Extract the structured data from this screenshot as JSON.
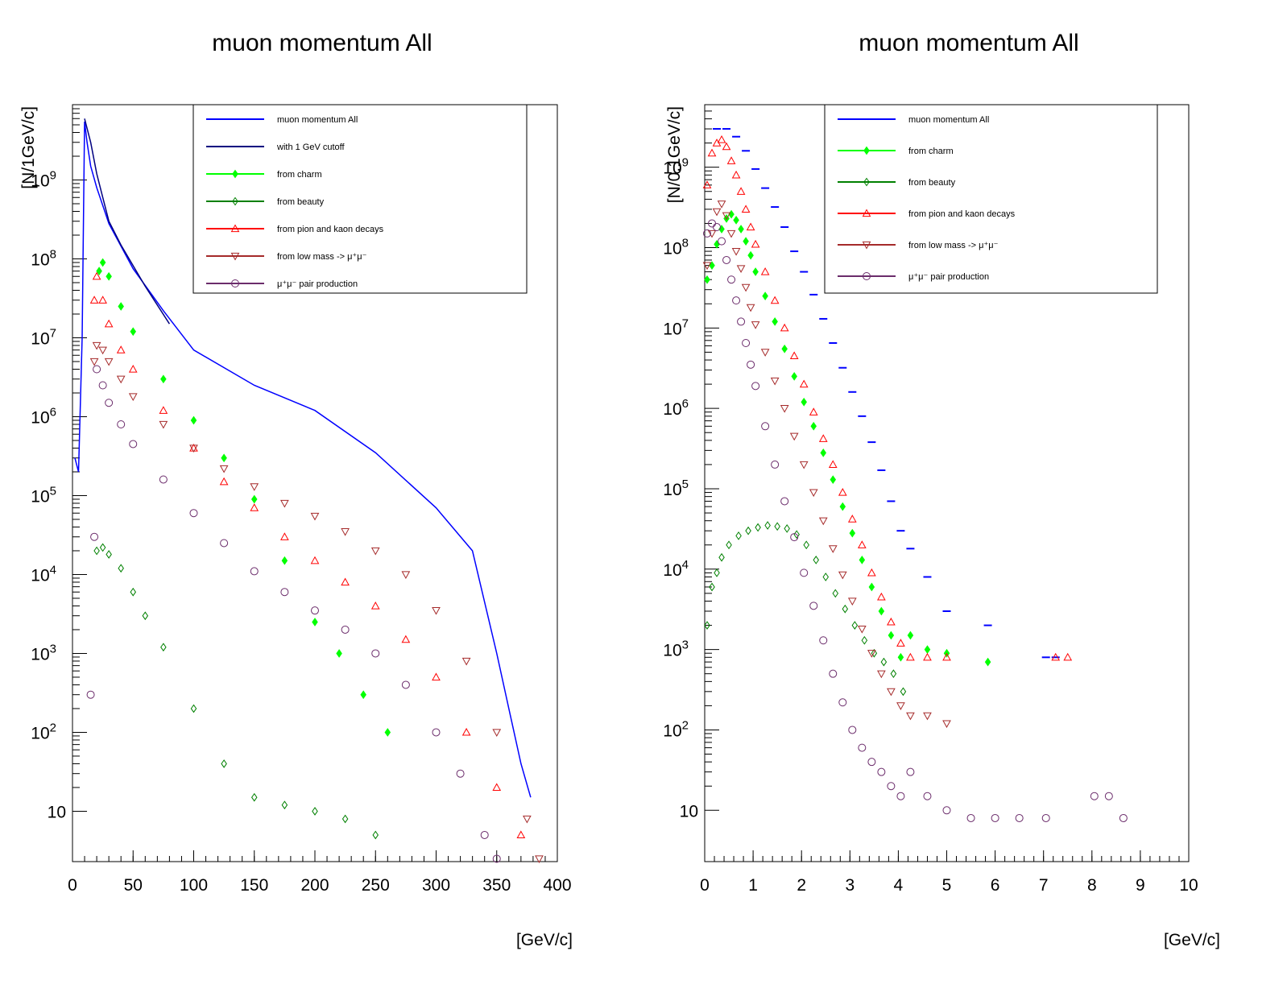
{
  "chart_data": [
    {
      "type": "scatter",
      "title": "muon momentum All",
      "xlabel": "[GeV/c]",
      "ylabel": "[N/1GeV/c]",
      "xlim": [
        0,
        400
      ],
      "ylim": [
        2.3,
        9000000000
      ],
      "yscale": "log",
      "x_ticks": [
        "0",
        "50",
        "100",
        "150",
        "200",
        "250",
        "300",
        "350",
        "400"
      ],
      "y_ticks": [
        {
          "value": 10,
          "label": "10"
        },
        {
          "value": 100,
          "label": "10",
          "exp": "2"
        },
        {
          "value": 1000,
          "label": "10",
          "exp": "3"
        },
        {
          "value": 10000,
          "label": "10",
          "exp": "4"
        },
        {
          "value": 100000,
          "label": "10",
          "exp": "5"
        },
        {
          "value": 1000000,
          "label": "10",
          "exp": "6"
        },
        {
          "value": 10000000,
          "label": "10",
          "exp": "7"
        },
        {
          "value": 100000000,
          "label": "10",
          "exp": "8"
        },
        {
          "value": 1000000000,
          "label": "10",
          "exp": "9"
        }
      ],
      "legend_position": "top-right",
      "series": [
        {
          "name": "muon momentum All",
          "color": "#0000ff",
          "marker": "line",
          "x": [
            2,
            5,
            8,
            10,
            12,
            15,
            20,
            30,
            50,
            75,
            100,
            150,
            200,
            250,
            300,
            330,
            350,
            360,
            370,
            378
          ],
          "y": [
            300000,
            200000,
            10000000,
            5500000000,
            3000000000,
            1500000000,
            800000000,
            280000000,
            75000000,
            22000000,
            7000000,
            2500000,
            1200000,
            350000,
            70000,
            20000,
            1000,
            200,
            40,
            15
          ]
        },
        {
          "name": "with 1 GeV cutoff",
          "color": "#000080",
          "marker": "line",
          "x": [
            10,
            15,
            20,
            25,
            30,
            40,
            60,
            80
          ],
          "y": [
            6000000000,
            3000000000,
            1200000000,
            600000000,
            300000000,
            150000000,
            45000000,
            15000000
          ]
        },
        {
          "name": "from charm",
          "color": "#00ff00",
          "marker": "diamond",
          "x": [
            22,
            25,
            30,
            40,
            50,
            75,
            100,
            125,
            150,
            175,
            200,
            220,
            240,
            260
          ],
          "y": [
            70000000,
            90000000,
            60000000,
            25000000,
            12000000,
            3000000,
            900000,
            300000,
            90000,
            15000,
            2500,
            1000,
            300,
            100
          ]
        },
        {
          "name": "from beauty",
          "color": "#008000",
          "marker": "diamond-open",
          "x": [
            20,
            25,
            30,
            40,
            50,
            60,
            75,
            100,
            125,
            150,
            175,
            200,
            225,
            250
          ],
          "y": [
            20000,
            22000,
            18000,
            12000,
            6000,
            3000,
            1200,
            200,
            40,
            15,
            12,
            10,
            8,
            5
          ]
        },
        {
          "name": "from pion and kaon decays",
          "color": "#ff0000",
          "marker": "triangle-up-open",
          "x": [
            18,
            20,
            25,
            30,
            40,
            50,
            75,
            100,
            125,
            150,
            175,
            200,
            225,
            250,
            275,
            300,
            325,
            350,
            370
          ],
          "y": [
            30000000,
            60000000,
            30000000,
            15000000,
            7000000,
            4000000,
            1200000,
            400000,
            150000,
            70000,
            30000,
            15000,
            8000,
            4000,
            1500,
            500,
            100,
            20,
            5
          ]
        },
        {
          "name": "from low mass -> μ⁺μ⁻",
          "color": "#a52a2a",
          "marker": "triangle-down-open",
          "x": [
            18,
            20,
            25,
            30,
            40,
            50,
            75,
            100,
            125,
            150,
            175,
            200,
            225,
            250,
            275,
            300,
            325,
            350,
            375,
            385
          ],
          "y": [
            5000000,
            8000000,
            7000000,
            5000000,
            3000000,
            1800000,
            800000,
            400000,
            220000,
            130000,
            80000,
            55000,
            35000,
            20000,
            10000,
            3500,
            800,
            100,
            8,
            2.5
          ]
        },
        {
          "name": "μ⁺μ⁻ pair production",
          "color": "#6b2c6b",
          "marker": "circle-open",
          "x": [
            15,
            18,
            20,
            25,
            30,
            40,
            50,
            75,
            100,
            125,
            150,
            175,
            200,
            225,
            250,
            275,
            300,
            320,
            340,
            350
          ],
          "y": [
            300,
            30000,
            4000000,
            2500000,
            1500000,
            800000,
            450000,
            160000,
            60000,
            25000,
            11000,
            6000,
            3500,
            2000,
            1000,
            400,
            100,
            30,
            5,
            2.5
          ]
        }
      ]
    },
    {
      "type": "scatter",
      "title": "muon momentum All",
      "xlabel": "[GeV/c]",
      "ylabel": "[N/0.1GeV/c]",
      "xlim": [
        0,
        10
      ],
      "ylim": [
        2.3,
        6000000000
      ],
      "yscale": "log",
      "x_ticks": [
        "0",
        "1",
        "2",
        "3",
        "4",
        "5",
        "6",
        "7",
        "8",
        "9",
        "10"
      ],
      "y_ticks": [
        {
          "value": 10,
          "label": "10"
        },
        {
          "value": 100,
          "label": "10",
          "exp": "2"
        },
        {
          "value": 1000,
          "label": "10",
          "exp": "3"
        },
        {
          "value": 10000,
          "label": "10",
          "exp": "4"
        },
        {
          "value": 100000,
          "label": "10",
          "exp": "5"
        },
        {
          "value": 1000000,
          "label": "10",
          "exp": "6"
        },
        {
          "value": 10000000,
          "label": "10",
          "exp": "7"
        },
        {
          "value": 100000000,
          "label": "10",
          "exp": "8"
        },
        {
          "value": 1000000000,
          "label": "10",
          "exp": "9"
        }
      ],
      "legend_position": "top-right",
      "series": [
        {
          "name": "muon momentum All",
          "color": "#0000ff",
          "marker": "dash",
          "x": [
            0.25,
            0.45,
            0.65,
            0.85,
            1.05,
            1.25,
            1.45,
            1.65,
            1.85,
            2.05,
            2.25,
            2.45,
            2.65,
            2.85,
            3.05,
            3.25,
            3.45,
            3.65,
            3.85,
            4.05,
            4.25,
            4.6,
            5.0,
            5.85,
            7.05,
            7.25
          ],
          "y": [
            3000000000,
            3000000000,
            2400000000,
            1600000000,
            950000000,
            550000000,
            320000000,
            180000000,
            90000000,
            50000000,
            26000000,
            13000000,
            6500000,
            3200000,
            1600000,
            800000,
            380000,
            170000,
            70000,
            30000,
            18000,
            8000,
            3000,
            2000,
            800,
            800
          ]
        },
        {
          "name": "from charm",
          "color": "#00ff00",
          "marker": "diamond",
          "x": [
            0.05,
            0.15,
            0.25,
            0.35,
            0.45,
            0.55,
            0.65,
            0.75,
            0.85,
            0.95,
            1.05,
            1.25,
            1.45,
            1.65,
            1.85,
            2.05,
            2.25,
            2.45,
            2.65,
            2.85,
            3.05,
            3.25,
            3.45,
            3.65,
            3.85,
            4.05,
            4.25,
            4.6,
            5.0,
            5.85
          ],
          "y": [
            40000000,
            60000000,
            110000000,
            170000000,
            230000000,
            260000000,
            220000000,
            170000000,
            120000000,
            80000000,
            50000000,
            25000000,
            12000000,
            5500000,
            2500000,
            1200000,
            600000,
            280000,
            130000,
            60000,
            28000,
            13000,
            6000,
            3000,
            1500,
            800,
            1500,
            1000,
            900,
            700
          ]
        },
        {
          "name": "from beauty",
          "color": "#008000",
          "marker": "diamond-open",
          "x": [
            0.05,
            0.15,
            0.25,
            0.35,
            0.5,
            0.7,
            0.9,
            1.1,
            1.3,
            1.5,
            1.7,
            1.9,
            2.1,
            2.3,
            2.5,
            2.7,
            2.9,
            3.1,
            3.3,
            3.5,
            3.7,
            3.9,
            4.1
          ],
          "y": [
            2000,
            6000,
            9000,
            14000,
            20000,
            26000,
            30000,
            33000,
            35000,
            34000,
            32000,
            27000,
            20000,
            13000,
            8000,
            5000,
            3200,
            2000,
            1300,
            900,
            700,
            500,
            300
          ]
        },
        {
          "name": "from pion and kaon decays",
          "color": "#ff0000",
          "marker": "triangle-up-open",
          "x": [
            0.05,
            0.15,
            0.25,
            0.35,
            0.45,
            0.55,
            0.65,
            0.75,
            0.85,
            0.95,
            1.05,
            1.25,
            1.45,
            1.65,
            1.85,
            2.05,
            2.25,
            2.45,
            2.65,
            2.85,
            3.05,
            3.25,
            3.45,
            3.65,
            3.85,
            4.05,
            4.25,
            4.6,
            5.0,
            7.25,
            7.5
          ],
          "y": [
            600000000,
            1500000000,
            2000000000,
            2200000000,
            1800000000,
            1200000000,
            800000000,
            500000000,
            300000000,
            180000000,
            110000000,
            50000000,
            22000000,
            10000000,
            4500000,
            2000000,
            900000,
            420000,
            200000,
            90000,
            42000,
            20000,
            9000,
            4500,
            2200,
            1200,
            800,
            800,
            800,
            800,
            800
          ]
        },
        {
          "name": "from low mass -> μ⁺μ⁻",
          "color": "#a52a2a",
          "marker": "triangle-down-open",
          "x": [
            0.05,
            0.15,
            0.25,
            0.35,
            0.45,
            0.55,
            0.65,
            0.75,
            0.85,
            0.95,
            1.05,
            1.25,
            1.45,
            1.65,
            1.85,
            2.05,
            2.25,
            2.45,
            2.65,
            2.85,
            3.05,
            3.25,
            3.45,
            3.65,
            3.85,
            4.05,
            4.25,
            4.6,
            5.0
          ],
          "y": [
            60000000,
            150000000,
            280000000,
            350000000,
            250000000,
            150000000,
            90000000,
            55000000,
            32000000,
            18000000,
            11000000,
            5000000,
            2200000,
            1000000,
            450000,
            200000,
            90000,
            40000,
            18000,
            8500,
            4000,
            1800,
            900,
            500,
            300,
            200,
            150,
            150,
            120
          ]
        },
        {
          "name": "μ⁺μ⁻ pair production",
          "color": "#6b2c6b",
          "marker": "circle-open",
          "x": [
            0.05,
            0.15,
            0.25,
            0.35,
            0.45,
            0.55,
            0.65,
            0.75,
            0.85,
            0.95,
            1.05,
            1.25,
            1.45,
            1.65,
            1.85,
            2.05,
            2.25,
            2.45,
            2.65,
            2.85,
            3.05,
            3.25,
            3.45,
            3.65,
            3.85,
            4.05,
            4.25,
            4.6,
            5.0,
            5.5,
            6.0,
            6.5,
            7.05,
            8.05,
            8.35,
            8.65
          ],
          "y": [
            150000000,
            200000000,
            180000000,
            120000000,
            70000000,
            40000000,
            22000000,
            12000000,
            6500000,
            3500000,
            1900000,
            600000,
            200000,
            70000,
            25000,
            9000,
            3500,
            1300,
            500,
            220,
            100,
            60,
            40,
            30,
            20,
            15,
            30,
            15,
            10,
            8,
            8,
            8,
            8,
            15,
            15,
            8
          ]
        }
      ]
    }
  ]
}
